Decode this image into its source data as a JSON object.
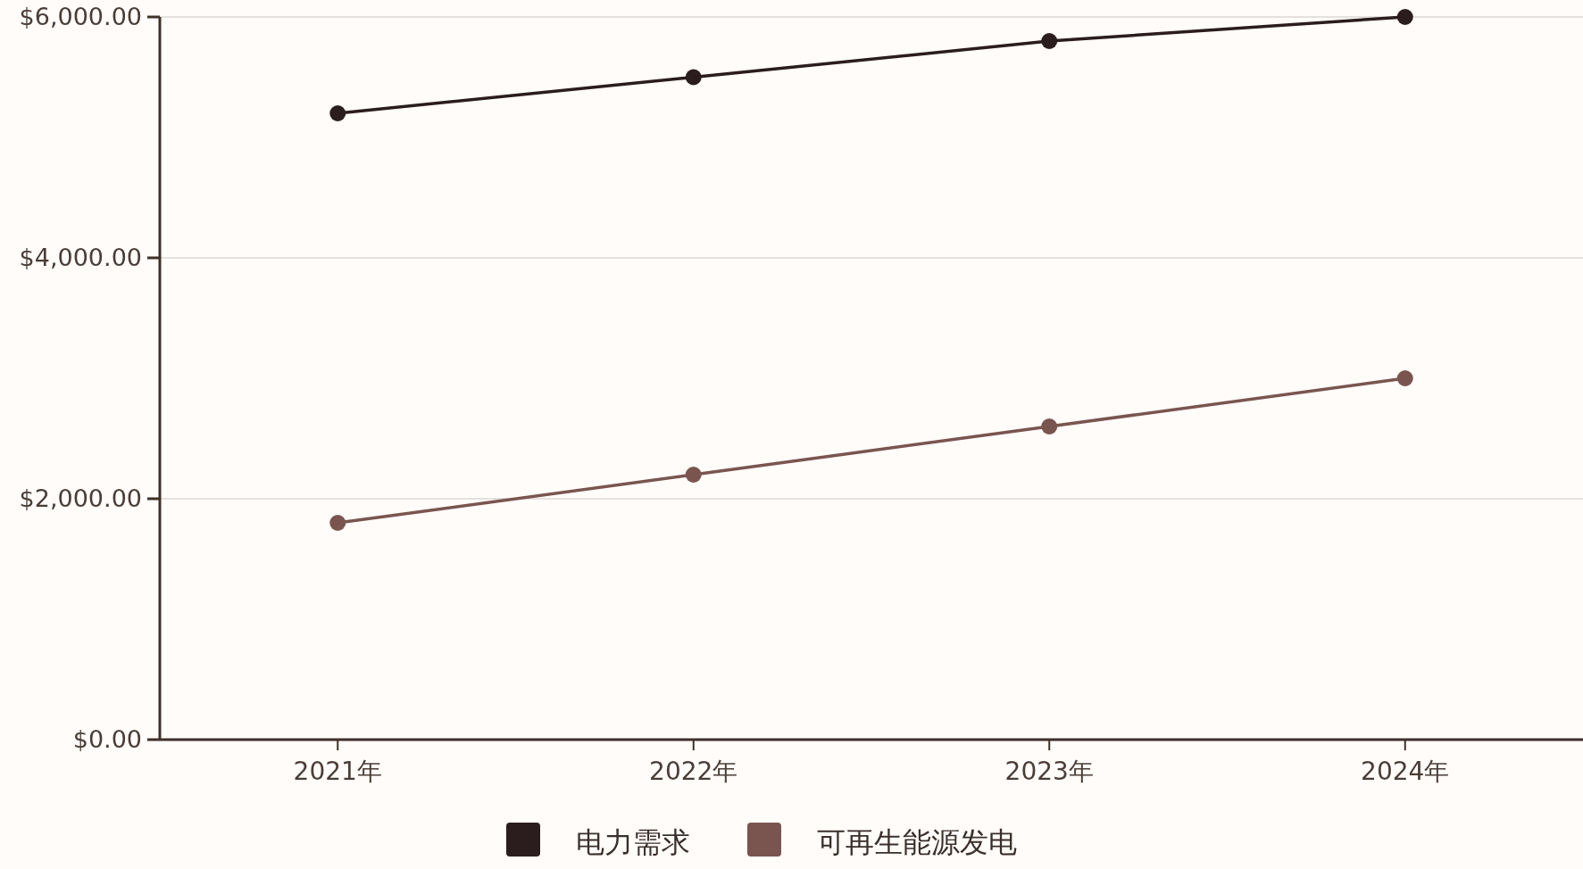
{
  "chart_data": {
    "type": "line",
    "categories": [
      "2021年",
      "2022年",
      "2023年",
      "2024年"
    ],
    "series": [
      {
        "name": "电力需求",
        "color": "#2b1d1d",
        "values": [
          5200,
          5500,
          5800,
          6000
        ]
      },
      {
        "name": "可再生能源发电",
        "color": "#7a5550",
        "values": [
          1800,
          2200,
          2600,
          3000
        ]
      }
    ],
    "ylim": [
      0,
      6000
    ],
    "yticks": [
      {
        "value": 0,
        "label": "$0.00"
      },
      {
        "value": 2000,
        "label": "$2,000.00"
      },
      {
        "value": 4000,
        "label": "$4,000.00"
      },
      {
        "value": 6000,
        "label": "$6,000.00"
      }
    ],
    "grid": "y",
    "legend": "bottom",
    "marker": "circle",
    "line_style": "solid"
  }
}
